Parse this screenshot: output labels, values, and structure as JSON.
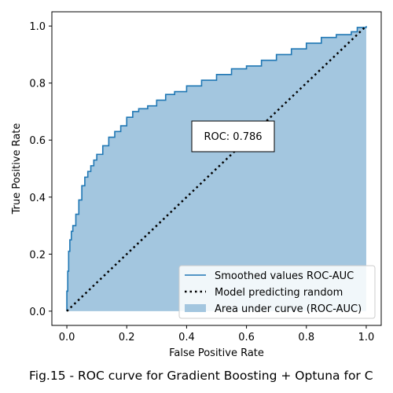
{
  "caption": "Fig.15 - ROC curve for Gradient Boosting + Optuna for C",
  "chart_data": {
    "type": "line",
    "xlabel": "False Positive Rate",
    "ylabel": "True Positive Rate",
    "xlim": [
      -0.05,
      1.05
    ],
    "ylim": [
      -0.05,
      1.05
    ],
    "xticks": [
      "0.0",
      "0.2",
      "0.4",
      "0.6",
      "0.8",
      "1.0"
    ],
    "yticks": [
      "0.0",
      "0.2",
      "0.4",
      "0.6",
      "0.8",
      "1.0"
    ],
    "grid": false,
    "legend_position": "lower-right",
    "annotation": "ROC: 0.786",
    "annotation_center": {
      "x": 0.55,
      "y": 0.61
    },
    "series": [
      {
        "name": "Smoothed values ROC-AUC",
        "style": "solid",
        "color": "#1f77b4",
        "x": [
          0.0,
          0.0,
          0.003,
          0.006,
          0.01,
          0.015,
          0.02,
          0.03,
          0.04,
          0.05,
          0.06,
          0.07,
          0.08,
          0.09,
          0.1,
          0.12,
          0.14,
          0.16,
          0.18,
          0.2,
          0.22,
          0.24,
          0.27,
          0.3,
          0.33,
          0.36,
          0.4,
          0.45,
          0.5,
          0.55,
          0.6,
          0.65,
          0.7,
          0.75,
          0.8,
          0.85,
          0.9,
          0.95,
          0.97,
          1.0
        ],
        "y": [
          0.0,
          0.07,
          0.14,
          0.21,
          0.25,
          0.28,
          0.3,
          0.34,
          0.39,
          0.44,
          0.47,
          0.49,
          0.51,
          0.53,
          0.55,
          0.58,
          0.61,
          0.63,
          0.65,
          0.68,
          0.7,
          0.71,
          0.72,
          0.74,
          0.76,
          0.77,
          0.79,
          0.81,
          0.83,
          0.85,
          0.86,
          0.88,
          0.9,
          0.92,
          0.94,
          0.96,
          0.97,
          0.98,
          0.995,
          1.0
        ]
      },
      {
        "name": "Model predicting random",
        "style": "dotted",
        "color": "#000000",
        "x": [
          0.0,
          1.0
        ],
        "y": [
          0.0,
          1.0
        ]
      }
    ],
    "area": {
      "name": "Area under curve (ROC-AUC)",
      "color": "#a3c6df",
      "of_series": 0
    }
  }
}
